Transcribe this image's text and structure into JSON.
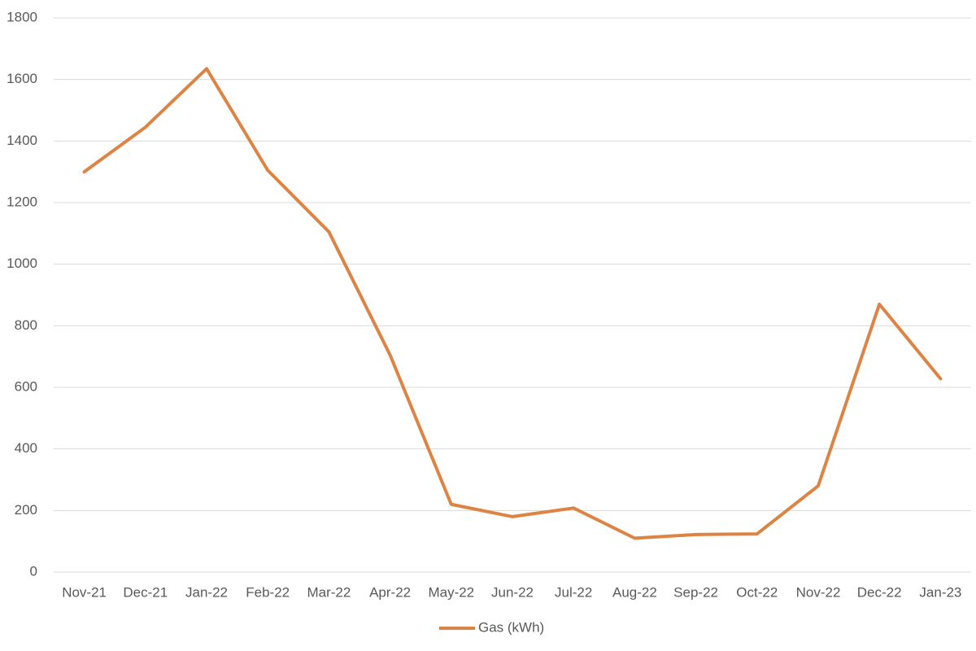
{
  "chart_data": {
    "type": "line",
    "categories": [
      "Nov-21",
      "Dec-21",
      "Jan-22",
      "Feb-22",
      "Mar-22",
      "Apr-22",
      "May-22",
      "Jun-22",
      "Jul-22",
      "Aug-22",
      "Sep-22",
      "Oct-22",
      "Nov-22",
      "Dec-22",
      "Jan-23"
    ],
    "series": [
      {
        "name": "Gas (kWh)",
        "color": "#dd8444",
        "values": [
          1300,
          1445,
          1635,
          1305,
          1105,
          705,
          220,
          180,
          208,
          110,
          122,
          124,
          280,
          870,
          628
        ]
      }
    ],
    "ylim": [
      0,
      1800
    ],
    "yticks": [
      0,
      200,
      400,
      600,
      800,
      1000,
      1200,
      1400,
      1600,
      1800
    ],
    "grid": true,
    "legend": "bottom"
  }
}
